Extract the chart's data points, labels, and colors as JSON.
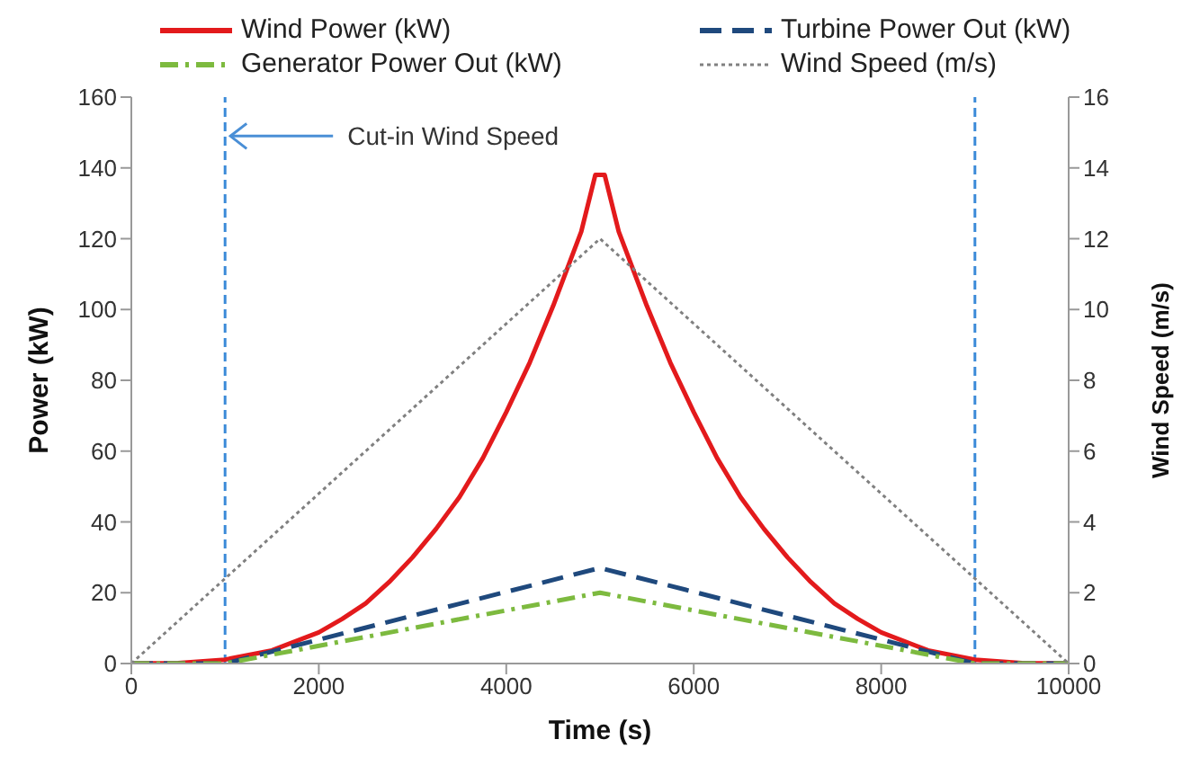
{
  "chart_data": {
    "type": "line",
    "xlabel": "Time (s)",
    "ylabel": "Power (kW)",
    "y2label": "Wind Speed (m/s)",
    "xlim": [
      0,
      10000
    ],
    "xticks": [
      0,
      2000,
      4000,
      6000,
      8000,
      10000
    ],
    "ylim": [
      0,
      160
    ],
    "yticks": [
      0,
      20,
      40,
      60,
      80,
      100,
      120,
      140,
      160
    ],
    "y2lim": [
      0,
      16
    ],
    "y2ticks": [
      0,
      2,
      4,
      6,
      8,
      10,
      12,
      14,
      16
    ],
    "legend": "top",
    "grid": false,
    "marker": "none",
    "series": [
      {
        "name": "Wind Power (kW)",
        "color": "#e31a1c",
        "line_style": "solid",
        "x": [
          0,
          500,
          1000,
          1500,
          2000,
          2250,
          2500,
          2750,
          3000,
          3250,
          3500,
          3750,
          4000,
          4250,
          4500,
          4700,
          4800,
          4950,
          5050,
          5200,
          5300,
          5500,
          5750,
          6000,
          6250,
          6500,
          6750,
          7000,
          7250,
          7500,
          7750,
          8000,
          8500,
          9000,
          9500,
          10000
        ],
        "values": [
          0,
          0.1,
          1.1,
          3.7,
          8.8,
          12.6,
          17,
          23,
          30,
          38,
          47,
          58,
          71,
          85,
          101,
          115,
          122,
          138,
          138,
          122,
          115,
          101,
          85,
          71,
          58,
          47,
          38,
          30,
          23,
          17,
          12.6,
          8.8,
          3.7,
          1.1,
          0.1,
          0
        ]
      },
      {
        "name": "Turbine Power Out (kW)",
        "color": "#1f497d",
        "line_style": "dashed",
        "x": [
          0,
          1000,
          5000,
          9000,
          10000
        ],
        "values": [
          0,
          0,
          27,
          0,
          0
        ]
      },
      {
        "name": "Generator Power Out (kW)",
        "color": "#7dba3f",
        "line_style": "dashdot",
        "x": [
          0,
          1000,
          5000,
          9000,
          10000
        ],
        "values": [
          0,
          0,
          20,
          0,
          0
        ]
      },
      {
        "name": "Wind Speed (m/s)",
        "color": "#808080",
        "line_style": "dotted",
        "axis": "y2",
        "x": [
          0,
          5000,
          10000
        ],
        "values": [
          0,
          12,
          0
        ]
      }
    ],
    "ref_lines": [
      {
        "axis": "x",
        "value": 1000,
        "color": "#3b8ad8",
        "line_style": "dashed"
      },
      {
        "axis": "x",
        "value": 9000,
        "color": "#3b8ad8",
        "line_style": "dashed"
      }
    ],
    "annotations": [
      {
        "text": "Cut-in Wind Speed",
        "x": 1000,
        "y": 149
      }
    ]
  }
}
